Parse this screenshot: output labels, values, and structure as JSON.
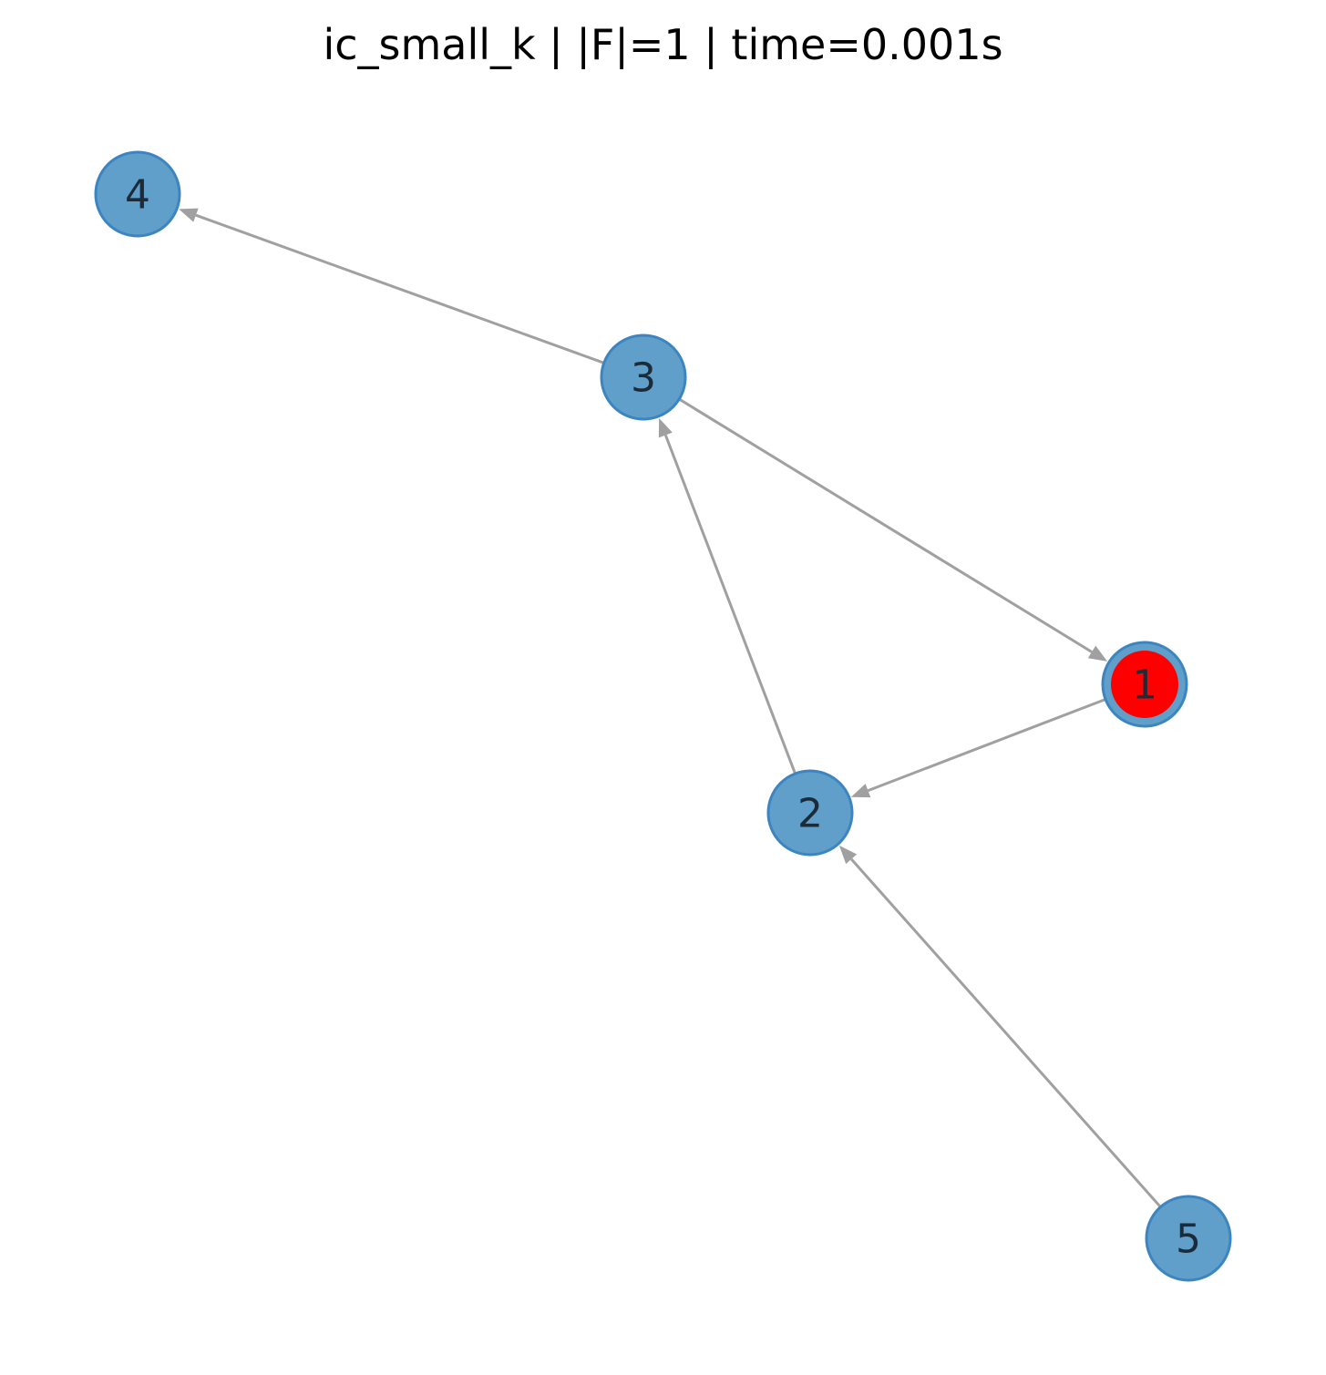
{
  "title": "ic_small_k | |F|=1 | time=0.001s",
  "colors": {
    "node_fill": "#5f9fca",
    "node_stroke": "#3d85c0",
    "highlight_fill": "#ff0000",
    "edge": "#a0a0a0",
    "label": "#1c2b3a"
  },
  "nodes": [
    {
      "id": "1",
      "label": "1",
      "highlighted": true
    },
    {
      "id": "2",
      "label": "2",
      "highlighted": false
    },
    {
      "id": "3",
      "label": "3",
      "highlighted": false
    },
    {
      "id": "4",
      "label": "4",
      "highlighted": false
    },
    {
      "id": "5",
      "label": "5",
      "highlighted": false
    }
  ],
  "edges": [
    {
      "from": "3",
      "to": "4"
    },
    {
      "from": "3",
      "to": "1"
    },
    {
      "from": "2",
      "to": "3"
    },
    {
      "from": "1",
      "to": "2"
    },
    {
      "from": "5",
      "to": "2"
    }
  ]
}
